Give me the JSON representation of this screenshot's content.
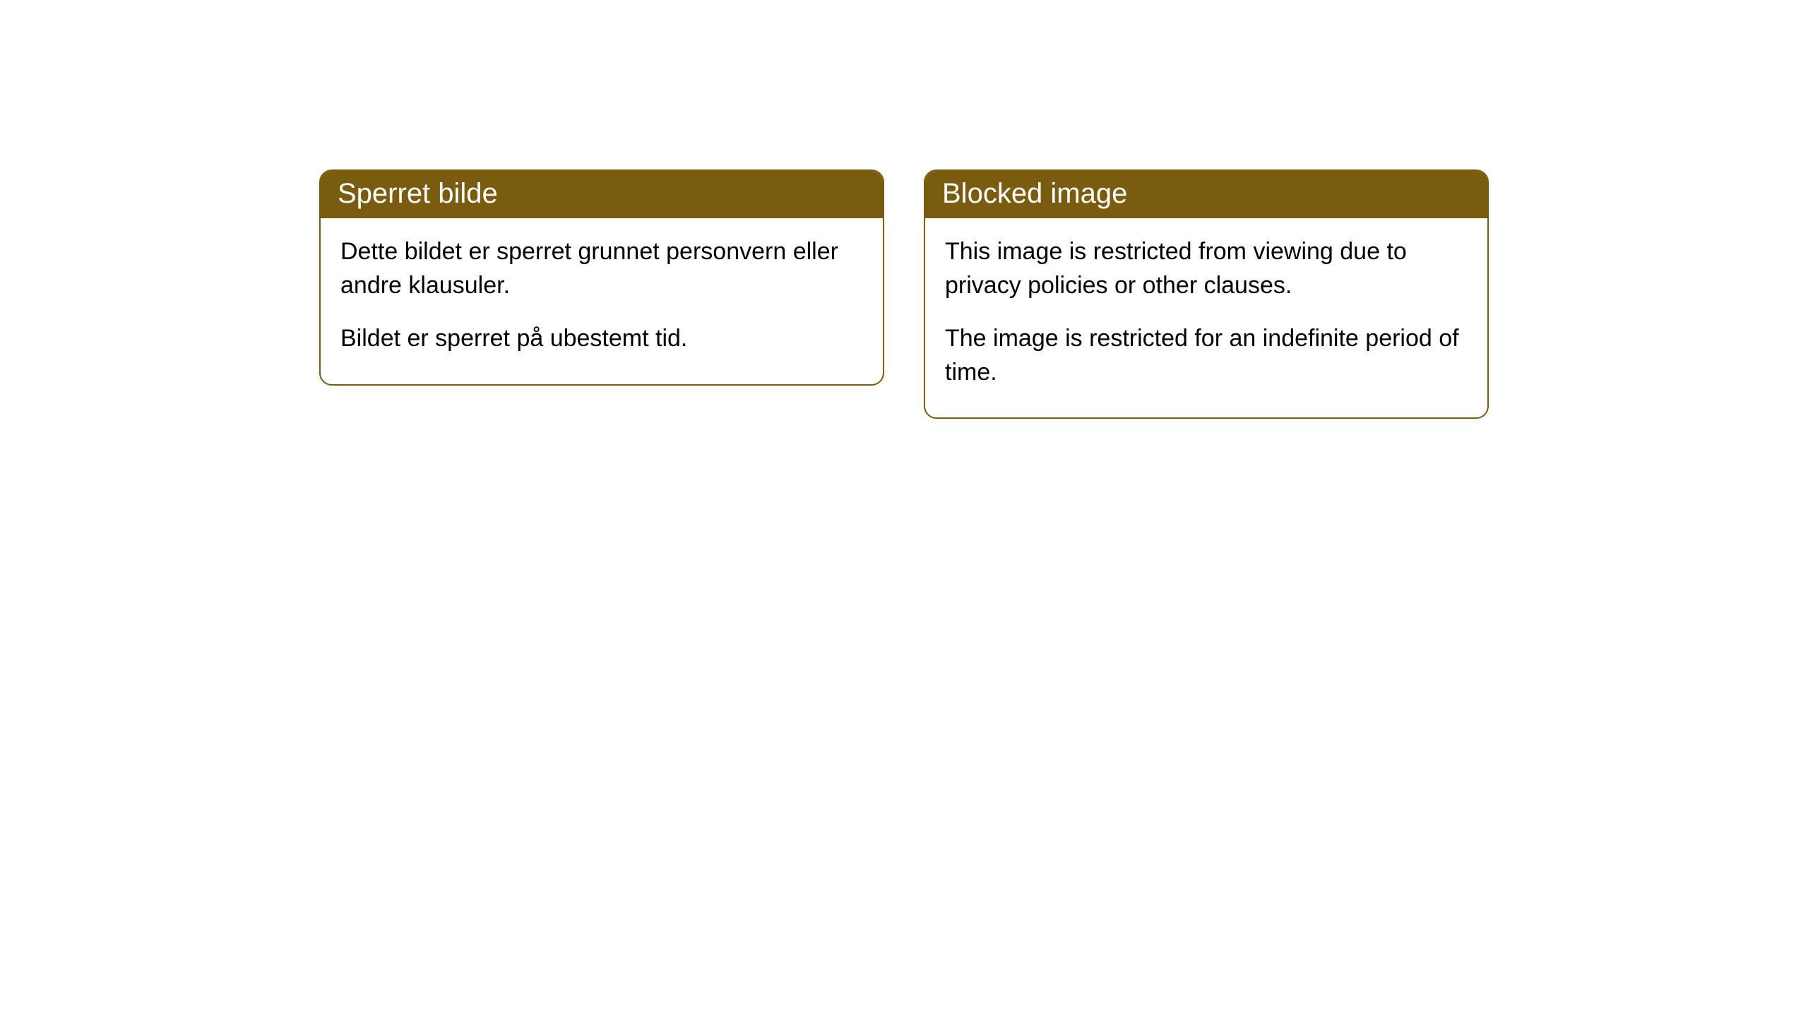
{
  "cards": [
    {
      "title": "Sperret bilde",
      "paragraph1": "Dette bildet er sperret grunnet personvern eller andre klausuler.",
      "paragraph2": "Bildet er sperret på ubestemt tid."
    },
    {
      "title": "Blocked image",
      "paragraph1": "This image is restricted from viewing due to privacy policies or other clauses.",
      "paragraph2": "The image is restricted for an indefinite period of time."
    }
  ],
  "style": {
    "header_bg": "#7a5c10",
    "header_text_color": "#ffffff",
    "border_color": "#7a5c10",
    "body_text_color": "#000000",
    "page_bg": "#ffffff",
    "border_radius": 18,
    "header_fontsize": 40,
    "body_fontsize": 34
  }
}
